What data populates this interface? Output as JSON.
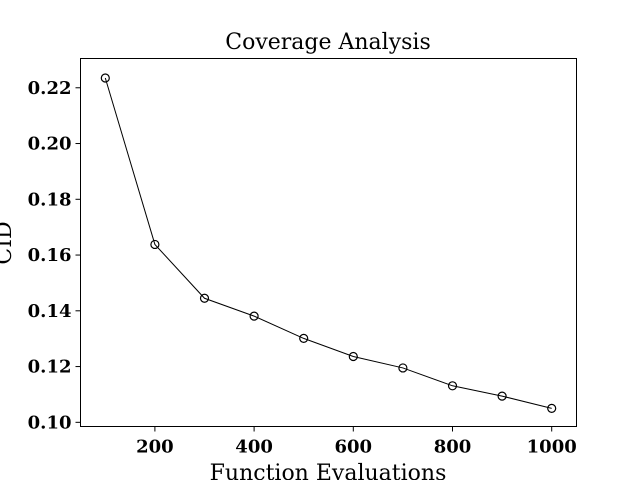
{
  "chart_data": {
    "type": "line",
    "title": "Coverage Analysis",
    "xlabel": "Function Evaluations",
    "ylabel": "CID",
    "xlim": [
      50,
      1050
    ],
    "ylim": [
      0.0985,
      0.2305
    ],
    "xticks": [
      200,
      400,
      600,
      800,
      1000
    ],
    "yticks": [
      0.1,
      0.12,
      0.14,
      0.16,
      0.18,
      0.2,
      0.22
    ],
    "xtick_labels": [
      "200",
      "400",
      "600",
      "800",
      "1000"
    ],
    "ytick_labels": [
      "0.10",
      "0.12",
      "0.14",
      "0.16",
      "0.18",
      "0.20",
      "0.22"
    ],
    "grid": false,
    "series": [
      {
        "x": [
          100,
          200,
          300,
          400,
          500,
          600,
          700,
          800,
          900,
          1000
        ],
        "y": [
          0.2235,
          0.1638,
          0.1445,
          0.1381,
          0.1301,
          0.1236,
          0.1195,
          0.1131,
          0.1094,
          0.105
        ],
        "color": "#000000",
        "marker": "open-circle"
      }
    ]
  }
}
